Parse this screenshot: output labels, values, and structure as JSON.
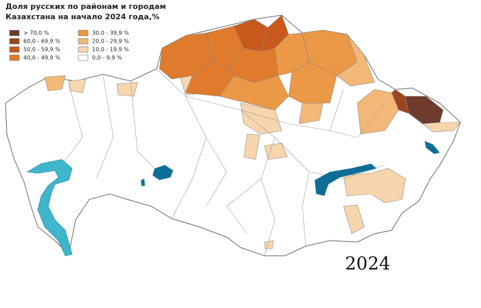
{
  "title_lines": [
    "Доля русских по районам и городам",
    "Казахстана на начало 2024 года,%"
  ],
  "legend": [
    {
      "label": "> 70,0 %",
      "color": "#6e3b2c"
    },
    {
      "label": "60,0 - 69,9 %",
      "color": "#9a4622"
    },
    {
      "label": "50,0 - 59,9 %",
      "color": "#c9581c"
    },
    {
      "label": "40,0 - 49,9 %",
      "color": "#e07a2c"
    },
    {
      "label": "30,0 - 39,9 %",
      "color": "#eb9847"
    },
    {
      "label": "20,0 - 29,9 %",
      "color": "#f3b878"
    },
    {
      "label": "10,0 - 19,9 %",
      "color": "#f7d5ad"
    },
    {
      "label": "0,0 - 9,9 %",
      "color": "#ffffff"
    }
  ],
  "year_label": "2024"
}
